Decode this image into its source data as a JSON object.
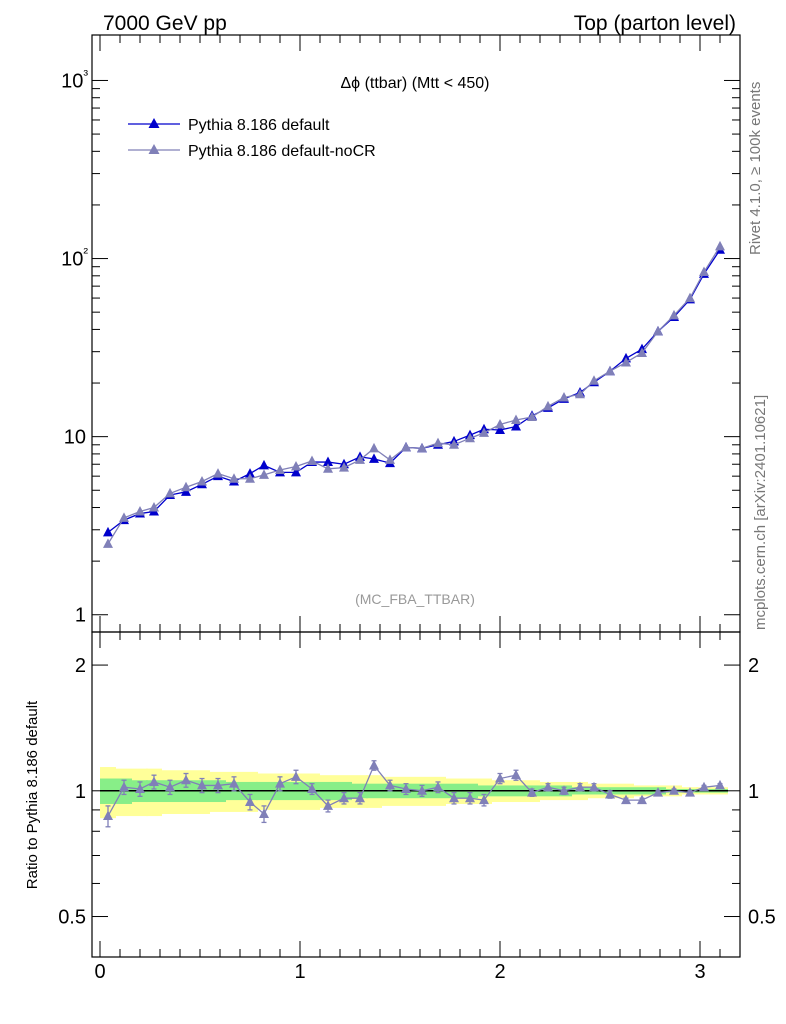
{
  "header": {
    "left": "7000 GeV pp",
    "right": "Top (parton level)"
  },
  "side": {
    "rivet": "Rivet 4.1.0, ≥ 100k events",
    "mcplots": "mcplots.cern.ch [arXiv:2401.10621]"
  },
  "chart_data": [
    {
      "type": "line",
      "panel": "main",
      "title": "Δϕ (ttbar) (Mtt < 450)",
      "watermark": "(MC_FBA_TTBAR)",
      "yscale": "log",
      "ylim": [
        0.8,
        1800
      ],
      "xlim": [
        -0.04,
        3.2
      ],
      "ytick_labels": [
        "1",
        "10",
        "10²",
        "10³"
      ],
      "legend_position": "top-left",
      "x": [
        0.04,
        0.12,
        0.2,
        0.27,
        0.35,
        0.43,
        0.51,
        0.59,
        0.67,
        0.75,
        0.82,
        0.9,
        0.98,
        1.06,
        1.14,
        1.22,
        1.3,
        1.37,
        1.45,
        1.53,
        1.61,
        1.69,
        1.77,
        1.85,
        1.92,
        2.0,
        2.08,
        2.16,
        2.24,
        2.32,
        2.4,
        2.47,
        2.55,
        2.63,
        2.71,
        2.79,
        2.87,
        2.95,
        3.02,
        3.1
      ],
      "series": [
        {
          "name": "Pythia 8.186 default",
          "color": "#0000cc",
          "values": [
            2.9,
            3.4,
            3.7,
            3.8,
            4.7,
            4.9,
            5.4,
            6.0,
            5.6,
            6.2,
            6.9,
            6.3,
            6.3,
            7.2,
            7.2,
            7.0,
            7.7,
            7.5,
            7.1,
            8.7,
            8.6,
            9.0,
            9.4,
            10.2,
            11.0,
            10.9,
            11.4,
            13.1,
            14.5,
            16.3,
            17.7,
            20.2,
            23.3,
            27.5,
            31.0,
            39.0,
            47.0,
            59.0,
            82.0,
            112.0
          ]
        },
        {
          "name": "Pythia 8.186 default-noCR",
          "color": "#8080b8",
          "values": [
            2.5,
            3.5,
            3.8,
            4.0,
            4.8,
            5.2,
            5.6,
            6.2,
            5.8,
            5.8,
            6.1,
            6.5,
            6.8,
            7.3,
            6.6,
            6.7,
            7.4,
            8.6,
            7.4,
            8.7,
            8.6,
            9.2,
            9.0,
            9.8,
            10.5,
            11.7,
            12.4,
            12.9,
            14.8,
            16.6,
            17.3,
            20.6,
            23.3,
            26.1,
            29.5,
            39.0,
            48.0,
            60.0,
            84.0,
            117.0
          ]
        }
      ]
    },
    {
      "type": "line",
      "panel": "ratio",
      "ylabel": "Ratio to Pythia 8.186 default",
      "yscale": "log",
      "ylim": [
        0.4,
        2.4
      ],
      "xlim": [
        -0.04,
        3.2
      ],
      "xtick_labels": [
        "0",
        "1",
        "2",
        "3"
      ],
      "ytick_labels": [
        "0.5",
        "1",
        "2"
      ],
      "reference": 1.0,
      "ratio_series": {
        "name": "Pythia 8.186 default-noCR",
        "values": [
          0.87,
          1.02,
          1.01,
          1.05,
          1.02,
          1.06,
          1.03,
          1.03,
          1.04,
          0.94,
          0.88,
          1.04,
          1.08,
          1.01,
          0.92,
          0.96,
          0.96,
          1.15,
          1.03,
          1.01,
          1.0,
          1.02,
          0.96,
          0.96,
          0.95,
          1.07,
          1.09,
          0.99,
          1.02,
          1.0,
          1.02,
          1.02,
          0.98,
          0.95,
          0.95,
          0.99,
          1.0,
          0.99,
          1.02,
          1.03
        ],
        "errors": [
          0.05,
          0.04,
          0.04,
          0.04,
          0.04,
          0.04,
          0.04,
          0.04,
          0.04,
          0.04,
          0.04,
          0.04,
          0.04,
          0.03,
          0.03,
          0.03,
          0.03,
          0.03,
          0.03,
          0.03,
          0.03,
          0.03,
          0.03,
          0.03,
          0.03,
          0.03,
          0.03,
          0.02,
          0.02,
          0.02,
          0.02,
          0.02,
          0.02,
          0.01,
          0.01,
          0.01,
          0.01,
          0.01,
          0.01,
          0.01
        ]
      },
      "band_yellow_halfwidth": [
        0.14,
        0.13,
        0.13,
        0.13,
        0.12,
        0.12,
        0.12,
        0.11,
        0.11,
        0.11,
        0.1,
        0.1,
        0.1,
        0.1,
        0.09,
        0.09,
        0.09,
        0.09,
        0.08,
        0.08,
        0.08,
        0.08,
        0.07,
        0.07,
        0.07,
        0.06,
        0.06,
        0.06,
        0.05,
        0.05,
        0.05,
        0.04,
        0.04,
        0.04,
        0.03,
        0.03,
        0.03,
        0.02,
        0.02,
        0.02
      ],
      "band_green_halfwidth": [
        0.07,
        0.07,
        0.06,
        0.06,
        0.06,
        0.06,
        0.06,
        0.06,
        0.05,
        0.05,
        0.05,
        0.05,
        0.05,
        0.05,
        0.05,
        0.05,
        0.04,
        0.04,
        0.04,
        0.04,
        0.04,
        0.04,
        0.04,
        0.04,
        0.03,
        0.03,
        0.03,
        0.03,
        0.03,
        0.03,
        0.02,
        0.02,
        0.02,
        0.02,
        0.02,
        0.02,
        0.01,
        0.01,
        0.01,
        0.01
      ],
      "band_colors": {
        "yellow": "#ffff99",
        "green": "#88ee88"
      }
    }
  ]
}
